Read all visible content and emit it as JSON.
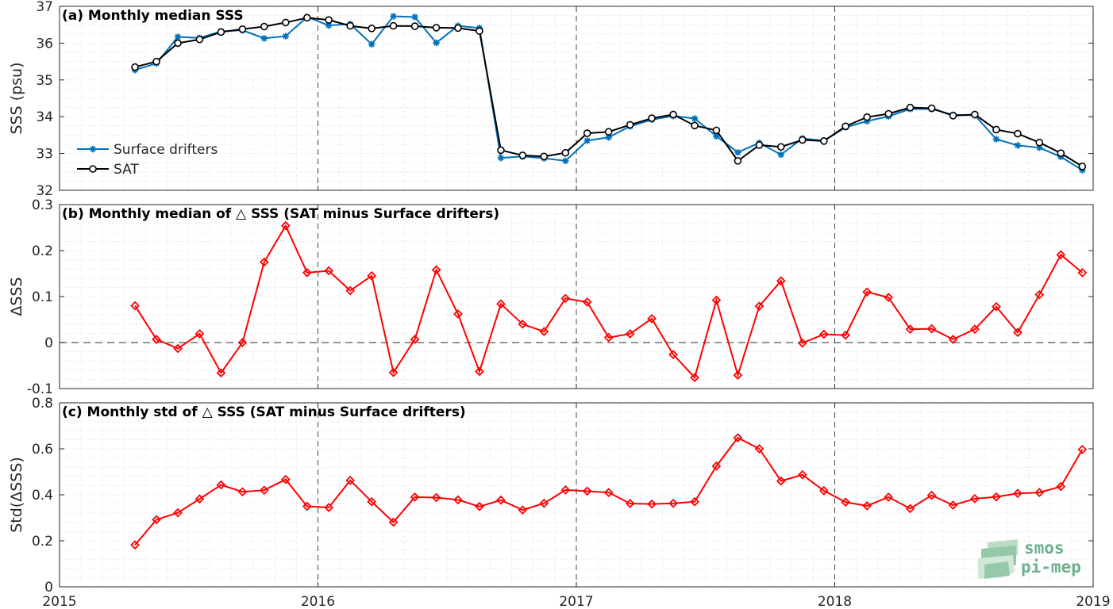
{
  "x_axis": {
    "ticks": [
      "2015",
      "2016",
      "2017",
      "2018",
      "2019"
    ],
    "range": [
      2015.0,
      2019.0
    ],
    "grid": true
  },
  "months": [
    2015.292,
    2015.375,
    2015.458,
    2015.542,
    2015.625,
    2015.708,
    2015.792,
    2015.875,
    2015.958,
    2016.042,
    2016.125,
    2016.208,
    2016.292,
    2016.375,
    2016.458,
    2016.542,
    2016.625,
    2016.708,
    2016.792,
    2016.875,
    2016.958,
    2017.042,
    2017.125,
    2017.208,
    2017.292,
    2017.375,
    2017.458,
    2017.542,
    2017.625,
    2017.708,
    2017.792,
    2017.875,
    2017.958,
    2018.042,
    2018.125,
    2018.208,
    2018.292,
    2018.375,
    2018.458,
    2018.542,
    2018.625,
    2018.708,
    2018.792,
    2018.875,
    2018.958
  ],
  "chart_data": [
    {
      "type": "line",
      "title": "(a) Monthly median SSS",
      "ylabel": "SSS (psu)",
      "ylim": [
        32,
        37
      ],
      "yticks": [
        "32",
        "33",
        "34",
        "35",
        "36",
        "37"
      ],
      "legend_position": "bottom-left",
      "series": [
        {
          "name": "Surface drifters",
          "color": "#0072bd",
          "marker": "asterisk",
          "values": [
            35.27,
            35.45,
            36.17,
            36.14,
            36.32,
            36.35,
            36.13,
            36.19,
            36.71,
            36.48,
            36.52,
            35.97,
            36.73,
            36.71,
            36.01,
            36.47,
            36.41,
            32.88,
            32.92,
            32.87,
            32.8,
            33.35,
            33.44,
            33.74,
            33.92,
            34.02,
            33.95,
            33.47,
            33.03,
            33.29,
            32.97,
            33.41,
            33.35,
            33.71,
            33.88,
            34.01,
            34.21,
            34.21,
            34.05,
            34.04,
            33.39,
            33.22,
            33.16,
            32.91,
            32.55
          ]
        },
        {
          "name": "SAT",
          "color": "#000000",
          "marker": "circle",
          "values": [
            35.35,
            35.5,
            36.0,
            36.1,
            36.3,
            36.38,
            36.45,
            36.56,
            36.69,
            36.63,
            36.47,
            36.4,
            36.47,
            36.46,
            36.42,
            36.41,
            36.33,
            33.09,
            32.95,
            32.92,
            33.02,
            33.55,
            33.59,
            33.78,
            33.96,
            34.06,
            33.76,
            33.63,
            32.8,
            33.23,
            33.18,
            33.37,
            33.34,
            33.74,
            33.99,
            34.08,
            34.25,
            34.23,
            34.03,
            34.06,
            33.65,
            33.54,
            33.3,
            33.01,
            32.65
          ]
        }
      ]
    },
    {
      "type": "line",
      "title": "(b) Monthly median of △ SSS (SAT minus Surface drifters)",
      "ylabel": "ΔSSS",
      "ylim": [
        -0.1,
        0.3
      ],
      "yticks": [
        "-0.1",
        "0",
        "0.1",
        "0.2",
        "0.3"
      ],
      "reference_line": 0,
      "series": [
        {
          "color": "#ff0000",
          "marker": "diamond",
          "values": [
            0.08,
            0.007,
            -0.013,
            0.019,
            -0.066,
            0.0,
            0.175,
            0.254,
            0.152,
            0.156,
            0.113,
            0.145,
            -0.065,
            0.007,
            0.158,
            0.062,
            -0.063,
            0.084,
            0.04,
            0.024,
            0.096,
            0.088,
            0.011,
            0.019,
            0.052,
            -0.026,
            -0.076,
            0.092,
            -0.071,
            0.079,
            0.134,
            -0.001,
            0.018,
            0.016,
            0.11,
            0.098,
            0.029,
            0.03,
            0.007,
            0.029,
            0.078,
            0.022,
            0.104,
            0.191,
            0.152
          ]
        }
      ]
    },
    {
      "type": "line",
      "title": "(c) Monthly std of △ SSS (SAT minus Surface drifters)",
      "ylabel": "Std(ΔSSS)",
      "ylim": [
        0,
        0.8
      ],
      "yticks": [
        "0",
        "0.2",
        "0.4",
        "0.6",
        "0.8"
      ],
      "series": [
        {
          "color": "#ff0000",
          "marker": "diamond",
          "values": [
            0.182,
            0.292,
            0.322,
            0.382,
            0.443,
            0.413,
            0.42,
            0.467,
            0.35,
            0.345,
            0.463,
            0.37,
            0.281,
            0.39,
            0.388,
            0.378,
            0.349,
            0.377,
            0.334,
            0.363,
            0.421,
            0.416,
            0.41,
            0.362,
            0.36,
            0.363,
            0.37,
            0.525,
            0.648,
            0.6,
            0.46,
            0.487,
            0.418,
            0.368,
            0.352,
            0.39,
            0.34,
            0.398,
            0.355,
            0.383,
            0.391,
            0.406,
            0.41,
            0.436,
            0.597
          ]
        }
      ]
    }
  ],
  "logo": {
    "line1": "smos",
    "line2": "pi-mep",
    "color": "#6fb08c"
  }
}
